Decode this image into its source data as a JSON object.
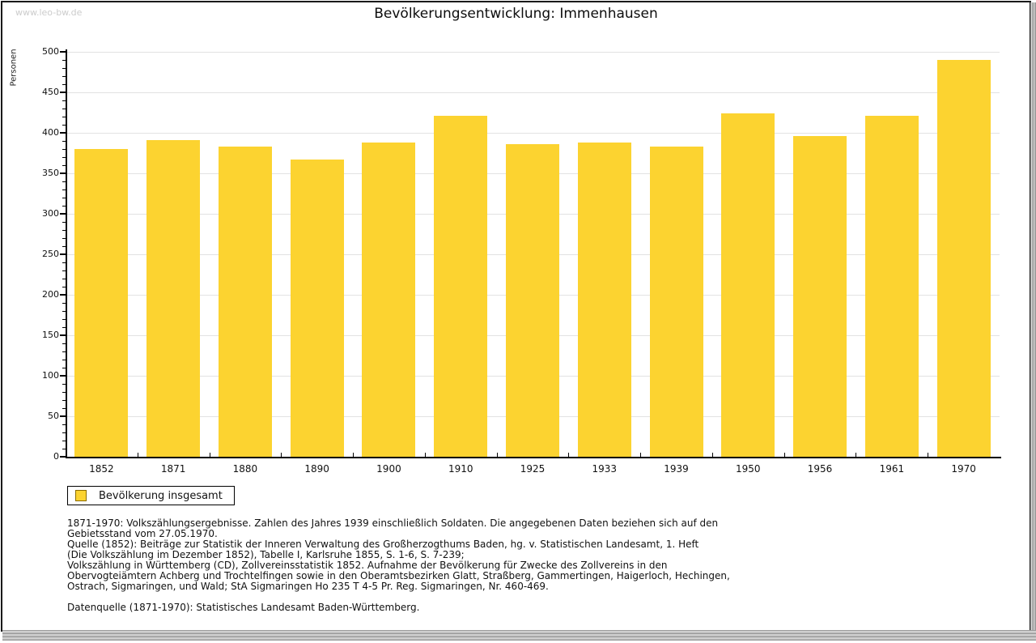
{
  "watermark": "www.leo-bw.de",
  "header": {
    "title": "Bevölkerungsentwicklung: Immenhausen"
  },
  "chart_data": {
    "type": "bar",
    "title": "Bevölkerungsentwicklung: Immenhausen",
    "xlabel": "",
    "ylabel": "Personen",
    "categories": [
      "1852",
      "1871",
      "1880",
      "1890",
      "1900",
      "1910",
      "1925",
      "1933",
      "1939",
      "1950",
      "1956",
      "1961",
      "1970"
    ],
    "values": [
      380,
      391,
      383,
      367,
      388,
      421,
      386,
      388,
      383,
      424,
      396,
      421,
      490
    ],
    "series_name": "Bevölkerung insgesamt",
    "ylim": [
      0,
      500
    ],
    "ytick_step": 50,
    "ytick_minor_step": 10,
    "grid": true,
    "bar_color": "#FCD330",
    "gridline_color": "#e2e2e2",
    "legend_position": "bottom-left"
  },
  "legend": {
    "label": "Bevölkerung insgesamt",
    "swatch_color": "#FCD330"
  },
  "footnotes": {
    "lines": [
      "1871-1970: Volkszählungsergebnisse. Zahlen des Jahres 1939 einschließlich Soldaten. Die angegebenen Daten beziehen sich auf den",
      "Gebietsstand vom 27.05.1970.",
      "Quelle (1852): Beiträge zur Statistik der Inneren Verwaltung des Großherzogthums Baden, hg. v. Statistischen Landesamt, 1. Heft",
      "(Die Volkszählung im Dezember 1852), Tabelle I, Karlsruhe 1855, S. 1-6, S. 7-239;",
      "Volkszählung in Württemberg (CD), Zollvereinsstatistik 1852. Aufnahme der Bevölkerung für Zwecke des Zollvereins in den",
      "Obervogteiämtern Achberg und Trochtelfingen sowie in den Oberamtsbezirken Glatt, Straßberg, Gammertingen, Haigerloch, Hechingen,",
      "Ostrach, Sigmaringen, und Wald; StA Sigmaringen Ho 235 T 4-5 Pr. Reg. Sigmaringen, Nr. 460-469."
    ],
    "datasource": "Datenquelle (1871-1970): Statistisches Landesamt Baden-Württemberg."
  }
}
